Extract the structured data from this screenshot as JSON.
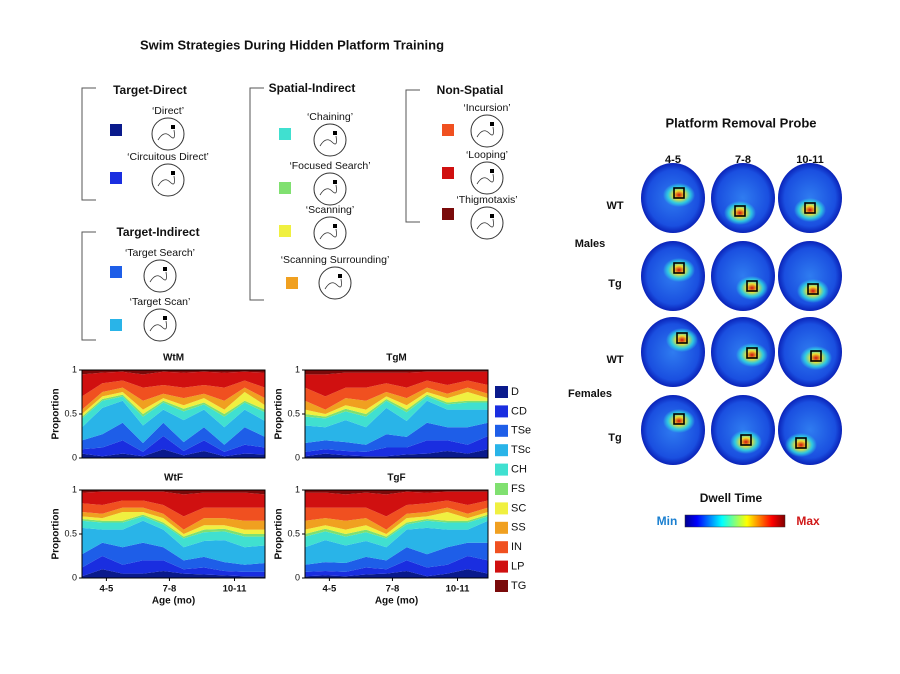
{
  "title": "Swim Strategies During Hidden Platform Training",
  "strategy_groups": [
    {
      "title": "Target-Direct",
      "items": [
        {
          "label": "‘Direct’",
          "color": "#0a1a8c"
        },
        {
          "label": "‘Circuitous Direct’",
          "color": "#1a2ee0"
        }
      ]
    },
    {
      "title": "Target-Indirect",
      "items": [
        {
          "label": "‘Target Search’",
          "color": "#1e5ee8"
        },
        {
          "label": "‘Target Scan’",
          "color": "#29b4e8"
        }
      ]
    },
    {
      "title": "Spatial-Indirect",
      "items": [
        {
          "label": "‘Chaining’",
          "color": "#40e0d0"
        },
        {
          "label": "‘Focused Search’",
          "color": "#80e070"
        },
        {
          "label": "‘Scanning’",
          "color": "#f0f040"
        },
        {
          "label": "‘Scanning Surrounding’",
          "color": "#f0a020"
        }
      ]
    },
    {
      "title": "Non-Spatial",
      "items": [
        {
          "label": "‘Incursion’",
          "color": "#f05020"
        },
        {
          "label": "‘Looping’",
          "color": "#d01010"
        },
        {
          "label": "‘Thigmotaxis’",
          "color": "#7a0a0a"
        }
      ]
    }
  ],
  "chart_data": [
    {
      "type": "area",
      "stacked": true,
      "title": "WtM",
      "ylabel": "Proportion",
      "x": [
        1,
        2,
        3,
        4,
        5,
        6,
        7,
        8,
        9,
        10
      ],
      "xlim": [
        1,
        10
      ],
      "ylim": [
        0,
        1
      ],
      "yticks": [
        0,
        0.5,
        1
      ],
      "series": [
        {
          "name": "D",
          "color": "#0a1a8c",
          "values": [
            0.05,
            0.02,
            0.05,
            0.02,
            0.1,
            0.03,
            0.08,
            0.02,
            0.05,
            0.04
          ]
        },
        {
          "name": "CD",
          "color": "#1a2ee0",
          "values": [
            0.05,
            0.1,
            0.15,
            0.05,
            0.15,
            0.05,
            0.12,
            0.05,
            0.1,
            0.08
          ]
        },
        {
          "name": "TSe",
          "color": "#1e5ee8",
          "values": [
            0.1,
            0.15,
            0.2,
            0.1,
            0.15,
            0.1,
            0.15,
            0.08,
            0.2,
            0.12
          ]
        },
        {
          "name": "TSc",
          "color": "#29b4e8",
          "values": [
            0.15,
            0.3,
            0.25,
            0.2,
            0.15,
            0.25,
            0.2,
            0.2,
            0.2,
            0.18
          ]
        },
        {
          "name": "CH",
          "color": "#40e0d0",
          "values": [
            0.1,
            0.08,
            0.05,
            0.1,
            0.08,
            0.1,
            0.06,
            0.12,
            0.08,
            0.1
          ]
        },
        {
          "name": "FS",
          "color": "#80e070",
          "values": [
            0.02,
            0.02,
            0.02,
            0.03,
            0.02,
            0.03,
            0.02,
            0.03,
            0.02,
            0.03
          ]
        },
        {
          "name": "SC",
          "color": "#f0f040",
          "values": [
            0.03,
            0.03,
            0.03,
            0.05,
            0.03,
            0.04,
            0.05,
            0.05,
            0.1,
            0.05
          ]
        },
        {
          "name": "SS",
          "color": "#f0a020",
          "values": [
            0.05,
            0.05,
            0.05,
            0.1,
            0.05,
            0.08,
            0.05,
            0.1,
            0.05,
            0.08
          ]
        },
        {
          "name": "IN",
          "color": "#f05020",
          "values": [
            0.15,
            0.1,
            0.08,
            0.15,
            0.1,
            0.12,
            0.1,
            0.15,
            0.08,
            0.12
          ]
        },
        {
          "name": "LP",
          "color": "#d01010",
          "values": [
            0.25,
            0.12,
            0.1,
            0.15,
            0.15,
            0.17,
            0.15,
            0.17,
            0.1,
            0.17
          ]
        },
        {
          "name": "TG",
          "color": "#7a0a0a",
          "values": [
            0.05,
            0.03,
            0.02,
            0.05,
            0.02,
            0.03,
            0.02,
            0.03,
            0.02,
            0.03
          ]
        }
      ]
    },
    {
      "type": "area",
      "stacked": true,
      "title": "TgM",
      "ylabel": "Proportion",
      "x": [
        1,
        2,
        3,
        4,
        5,
        6,
        7,
        8,
        9,
        10
      ],
      "xlim": [
        1,
        10
      ],
      "ylim": [
        0,
        1
      ],
      "yticks": [
        0,
        0.5,
        1
      ],
      "series": [
        {
          "name": "D",
          "color": "#0a1a8c",
          "values": [
            0.02,
            0.05,
            0.03,
            0.02,
            0.02,
            0.04,
            0.05,
            0.08,
            0.05,
            0.1
          ]
        },
        {
          "name": "CD",
          "color": "#1a2ee0",
          "values": [
            0.05,
            0.05,
            0.05,
            0.05,
            0.1,
            0.08,
            0.15,
            0.12,
            0.1,
            0.15
          ]
        },
        {
          "name": "TSe",
          "color": "#1e5ee8",
          "values": [
            0.1,
            0.1,
            0.1,
            0.08,
            0.15,
            0.12,
            0.2,
            0.15,
            0.2,
            0.15
          ]
        },
        {
          "name": "TSc",
          "color": "#29b4e8",
          "values": [
            0.2,
            0.15,
            0.25,
            0.2,
            0.3,
            0.18,
            0.25,
            0.2,
            0.2,
            0.15
          ]
        },
        {
          "name": "CH",
          "color": "#40e0d0",
          "values": [
            0.1,
            0.1,
            0.1,
            0.12,
            0.08,
            0.1,
            0.05,
            0.06,
            0.08,
            0.08
          ]
        },
        {
          "name": "FS",
          "color": "#80e070",
          "values": [
            0.03,
            0.02,
            0.03,
            0.03,
            0.02,
            0.03,
            0.02,
            0.02,
            0.02,
            0.02
          ]
        },
        {
          "name": "SC",
          "color": "#f0f040",
          "values": [
            0.05,
            0.03,
            0.04,
            0.05,
            0.03,
            0.05,
            0.03,
            0.05,
            0.1,
            0.03
          ]
        },
        {
          "name": "SS",
          "color": "#f0a020",
          "values": [
            0.1,
            0.05,
            0.08,
            0.1,
            0.05,
            0.08,
            0.05,
            0.05,
            0.05,
            0.05
          ]
        },
        {
          "name": "IN",
          "color": "#f05020",
          "values": [
            0.15,
            0.15,
            0.12,
            0.15,
            0.1,
            0.12,
            0.08,
            0.1,
            0.08,
            0.1
          ]
        },
        {
          "name": "LP",
          "color": "#d01010",
          "values": [
            0.15,
            0.25,
            0.17,
            0.17,
            0.12,
            0.17,
            0.1,
            0.15,
            0.1,
            0.15
          ]
        },
        {
          "name": "TG",
          "color": "#7a0a0a",
          "values": [
            0.05,
            0.05,
            0.03,
            0.03,
            0.03,
            0.03,
            0.02,
            0.02,
            0.02,
            0.02
          ]
        }
      ]
    },
    {
      "type": "area",
      "stacked": true,
      "title": "WtF",
      "ylabel": "Proportion",
      "xlabel": "Age (mo)",
      "x": [
        1,
        2,
        3,
        4,
        5,
        6,
        7,
        8,
        9,
        10
      ],
      "xlim": [
        1,
        10
      ],
      "ylim": [
        0,
        1
      ],
      "yticks": [
        0,
        0.5,
        1
      ],
      "xticks": [
        {
          "value": 2.2,
          "label": "4-5"
        },
        {
          "value": 5.3,
          "label": "7-8"
        },
        {
          "value": 8.5,
          "label": "10-11"
        }
      ],
      "series": [
        {
          "name": "D",
          "color": "#0a1a8c",
          "values": [
            0.02,
            0.1,
            0.05,
            0.05,
            0.08,
            0.05,
            0.04,
            0.03,
            0.02,
            0.02
          ]
        },
        {
          "name": "CD",
          "color": "#1a2ee0",
          "values": [
            0.1,
            0.15,
            0.1,
            0.15,
            0.12,
            0.05,
            0.08,
            0.05,
            0.05,
            0.05
          ]
        },
        {
          "name": "TSe",
          "color": "#1e5ee8",
          "values": [
            0.15,
            0.15,
            0.2,
            0.2,
            0.15,
            0.1,
            0.12,
            0.1,
            0.08,
            0.1
          ]
        },
        {
          "name": "TSc",
          "color": "#29b4e8",
          "values": [
            0.3,
            0.15,
            0.2,
            0.25,
            0.2,
            0.15,
            0.18,
            0.25,
            0.2,
            0.2
          ]
        },
        {
          "name": "CH",
          "color": "#40e0d0",
          "values": [
            0.08,
            0.08,
            0.08,
            0.05,
            0.06,
            0.1,
            0.1,
            0.1,
            0.12,
            0.1
          ]
        },
        {
          "name": "FS",
          "color": "#80e070",
          "values": [
            0.02,
            0.02,
            0.02,
            0.02,
            0.02,
            0.02,
            0.03,
            0.03,
            0.03,
            0.03
          ]
        },
        {
          "name": "SC",
          "color": "#f0f040",
          "values": [
            0.03,
            0.03,
            0.1,
            0.03,
            0.05,
            0.03,
            0.05,
            0.04,
            0.05,
            0.05
          ]
        },
        {
          "name": "SS",
          "color": "#f0a020",
          "values": [
            0.05,
            0.05,
            0.05,
            0.05,
            0.05,
            0.05,
            0.08,
            0.08,
            0.1,
            0.1
          ]
        },
        {
          "name": "IN",
          "color": "#f05020",
          "values": [
            0.1,
            0.1,
            0.08,
            0.08,
            0.1,
            0.15,
            0.12,
            0.12,
            0.15,
            0.15
          ]
        },
        {
          "name": "LP",
          "color": "#d01010",
          "values": [
            0.12,
            0.15,
            0.1,
            0.1,
            0.15,
            0.25,
            0.17,
            0.17,
            0.17,
            0.15
          ]
        },
        {
          "name": "TG",
          "color": "#7a0a0a",
          "values": [
            0.03,
            0.02,
            0.02,
            0.02,
            0.02,
            0.05,
            0.03,
            0.03,
            0.03,
            0.05
          ]
        }
      ]
    },
    {
      "type": "area",
      "stacked": true,
      "title": "TgF",
      "ylabel": "Proportion",
      "xlabel": "Age (mo)",
      "x": [
        1,
        2,
        3,
        4,
        5,
        6,
        7,
        8,
        9,
        10
      ],
      "xlim": [
        1,
        10
      ],
      "ylim": [
        0,
        1
      ],
      "yticks": [
        0,
        0.5,
        1
      ],
      "xticks": [
        {
          "value": 2.2,
          "label": "4-5"
        },
        {
          "value": 5.3,
          "label": "7-8"
        },
        {
          "value": 8.5,
          "label": "10-11"
        }
      ],
      "series": [
        {
          "name": "D",
          "color": "#0a1a8c",
          "values": [
            0.02,
            0.03,
            0.02,
            0.04,
            0.05,
            0.08,
            0.02,
            0.05,
            0.1,
            0.05
          ]
        },
        {
          "name": "CD",
          "color": "#1a2ee0",
          "values": [
            0.05,
            0.05,
            0.05,
            0.08,
            0.05,
            0.12,
            0.1,
            0.1,
            0.15,
            0.15
          ]
        },
        {
          "name": "TSe",
          "color": "#1e5ee8",
          "values": [
            0.08,
            0.1,
            0.1,
            0.12,
            0.1,
            0.15,
            0.15,
            0.2,
            0.15,
            0.2
          ]
        },
        {
          "name": "TSc",
          "color": "#29b4e8",
          "values": [
            0.2,
            0.25,
            0.2,
            0.18,
            0.15,
            0.2,
            0.3,
            0.2,
            0.15,
            0.25
          ]
        },
        {
          "name": "CH",
          "color": "#40e0d0",
          "values": [
            0.12,
            0.1,
            0.1,
            0.1,
            0.1,
            0.06,
            0.08,
            0.08,
            0.08,
            0.05
          ]
        },
        {
          "name": "FS",
          "color": "#80e070",
          "values": [
            0.03,
            0.03,
            0.03,
            0.03,
            0.02,
            0.02,
            0.02,
            0.02,
            0.02,
            0.02
          ]
        },
        {
          "name": "SC",
          "color": "#f0f040",
          "values": [
            0.05,
            0.04,
            0.05,
            0.05,
            0.03,
            0.05,
            0.03,
            0.1,
            0.03,
            0.03
          ]
        },
        {
          "name": "SS",
          "color": "#f0a020",
          "values": [
            0.1,
            0.08,
            0.1,
            0.08,
            0.05,
            0.05,
            0.05,
            0.05,
            0.05,
            0.05
          ]
        },
        {
          "name": "IN",
          "color": "#f05020",
          "values": [
            0.15,
            0.12,
            0.15,
            0.12,
            0.15,
            0.1,
            0.1,
            0.08,
            0.1,
            0.08
          ]
        },
        {
          "name": "LP",
          "color": "#d01010",
          "values": [
            0.17,
            0.17,
            0.15,
            0.17,
            0.25,
            0.15,
            0.12,
            0.1,
            0.15,
            0.1
          ]
        },
        {
          "name": "TG",
          "color": "#7a0a0a",
          "values": [
            0.03,
            0.03,
            0.05,
            0.03,
            0.05,
            0.02,
            0.03,
            0.02,
            0.02,
            0.02
          ]
        }
      ]
    }
  ],
  "probe": {
    "title": "Platform Removal Probe",
    "columns": [
      "4-5",
      "7-8",
      "10-11"
    ],
    "groups": [
      {
        "label": "Males",
        "rows": [
          "WT",
          "Tg"
        ]
      },
      {
        "label": "Females",
        "rows": [
          "WT",
          "Tg"
        ]
      }
    ],
    "colorbar": {
      "title": "Dwell Time",
      "min_label": "Min",
      "max_label": "Max"
    }
  }
}
